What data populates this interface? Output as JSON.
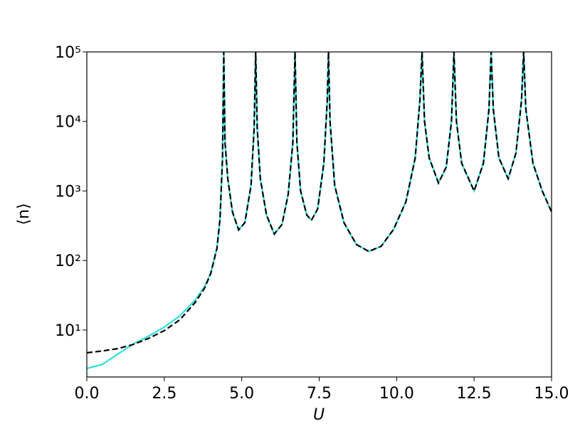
{
  "chart_data": {
    "type": "line",
    "xlabel": "U",
    "ylabel": "⟨n⟩",
    "log_y": true,
    "x": [
      0,
      0.5,
      1,
      1.5,
      2,
      2.5,
      3,
      3.5,
      3.8,
      4.0,
      4.2,
      4.3,
      4.38,
      4.42,
      4.46,
      4.55,
      4.7,
      4.9,
      5.1,
      5.3,
      5.4,
      5.45,
      5.5,
      5.6,
      5.8,
      6.05,
      6.3,
      6.5,
      6.65,
      6.72,
      6.78,
      6.9,
      7.1,
      7.25,
      7.45,
      7.65,
      7.76,
      7.8,
      7.85,
      8.0,
      8.3,
      8.7,
      9.1,
      9.5,
      9.9,
      10.3,
      10.6,
      10.75,
      10.82,
      10.9,
      11.05,
      11.35,
      11.6,
      11.77,
      11.85,
      11.93,
      12.1,
      12.5,
      12.8,
      12.98,
      13.05,
      13.12,
      13.3,
      13.6,
      13.85,
      14.03,
      14.1,
      14.17,
      14.4,
      14.7,
      15
    ],
    "series": [
      {
        "color": "#2ee0e0",
        "style": "solid",
        "values": [
          2.8,
          3.2,
          4.5,
          6.3,
          8.2,
          11,
          16,
          27,
          42,
          66,
          150,
          400,
          3000,
          100000,
          5000,
          1500,
          500,
          275,
          350,
          1200,
          8000,
          100000,
          8000,
          1500,
          450,
          240,
          330,
          900,
          5000,
          100000,
          5000,
          1000,
          450,
          380,
          550,
          2500,
          20000,
          100000,
          10000,
          1200,
          350,
          170,
          135,
          160,
          280,
          700,
          3000,
          20000,
          100000,
          10000,
          3000,
          1300,
          2200,
          10000,
          100000,
          10000,
          2500,
          1000,
          2500,
          15000,
          100000,
          15000,
          3000,
          1500,
          3500,
          20000,
          100000,
          15000,
          2500,
          1000,
          500
        ]
      },
      {
        "color": "#000000",
        "style": "dashed",
        "values": [
          4.7,
          5.0,
          5.4,
          6.2,
          7.6,
          9.8,
          14,
          25,
          40,
          65,
          150,
          400,
          3000,
          100000,
          5000,
          1500,
          500,
          275,
          350,
          1200,
          8000,
          100000,
          8000,
          1500,
          450,
          240,
          330,
          900,
          5000,
          100000,
          5000,
          1000,
          450,
          380,
          550,
          2500,
          20000,
          100000,
          10000,
          1200,
          350,
          170,
          135,
          160,
          280,
          700,
          3000,
          20000,
          100000,
          10000,
          3000,
          1300,
          2200,
          10000,
          100000,
          10000,
          2500,
          1000,
          2500,
          15000,
          100000,
          15000,
          3000,
          1500,
          3500,
          20000,
          100000,
          15000,
          2500,
          1000,
          500
        ]
      }
    ],
    "xlim": [
      0,
      15
    ],
    "xticks": [
      {
        "value": 0,
        "label": "0.0"
      },
      2.5,
      {
        "value": 5,
        "label": "5.0"
      },
      7.5,
      {
        "value": 10,
        "label": "10.0"
      },
      12.5,
      {
        "value": 15,
        "label": "15.0"
      }
    ],
    "ylim": [
      2.11,
      100000
    ],
    "yticks": [
      {
        "value": 10,
        "label": "10¹"
      },
      {
        "value": 100,
        "label": "10²"
      },
      {
        "value": 1000,
        "label": "10³"
      },
      {
        "value": 10000,
        "label": "10⁴"
      },
      {
        "value": 100000,
        "label": "10⁵"
      }
    ]
  }
}
